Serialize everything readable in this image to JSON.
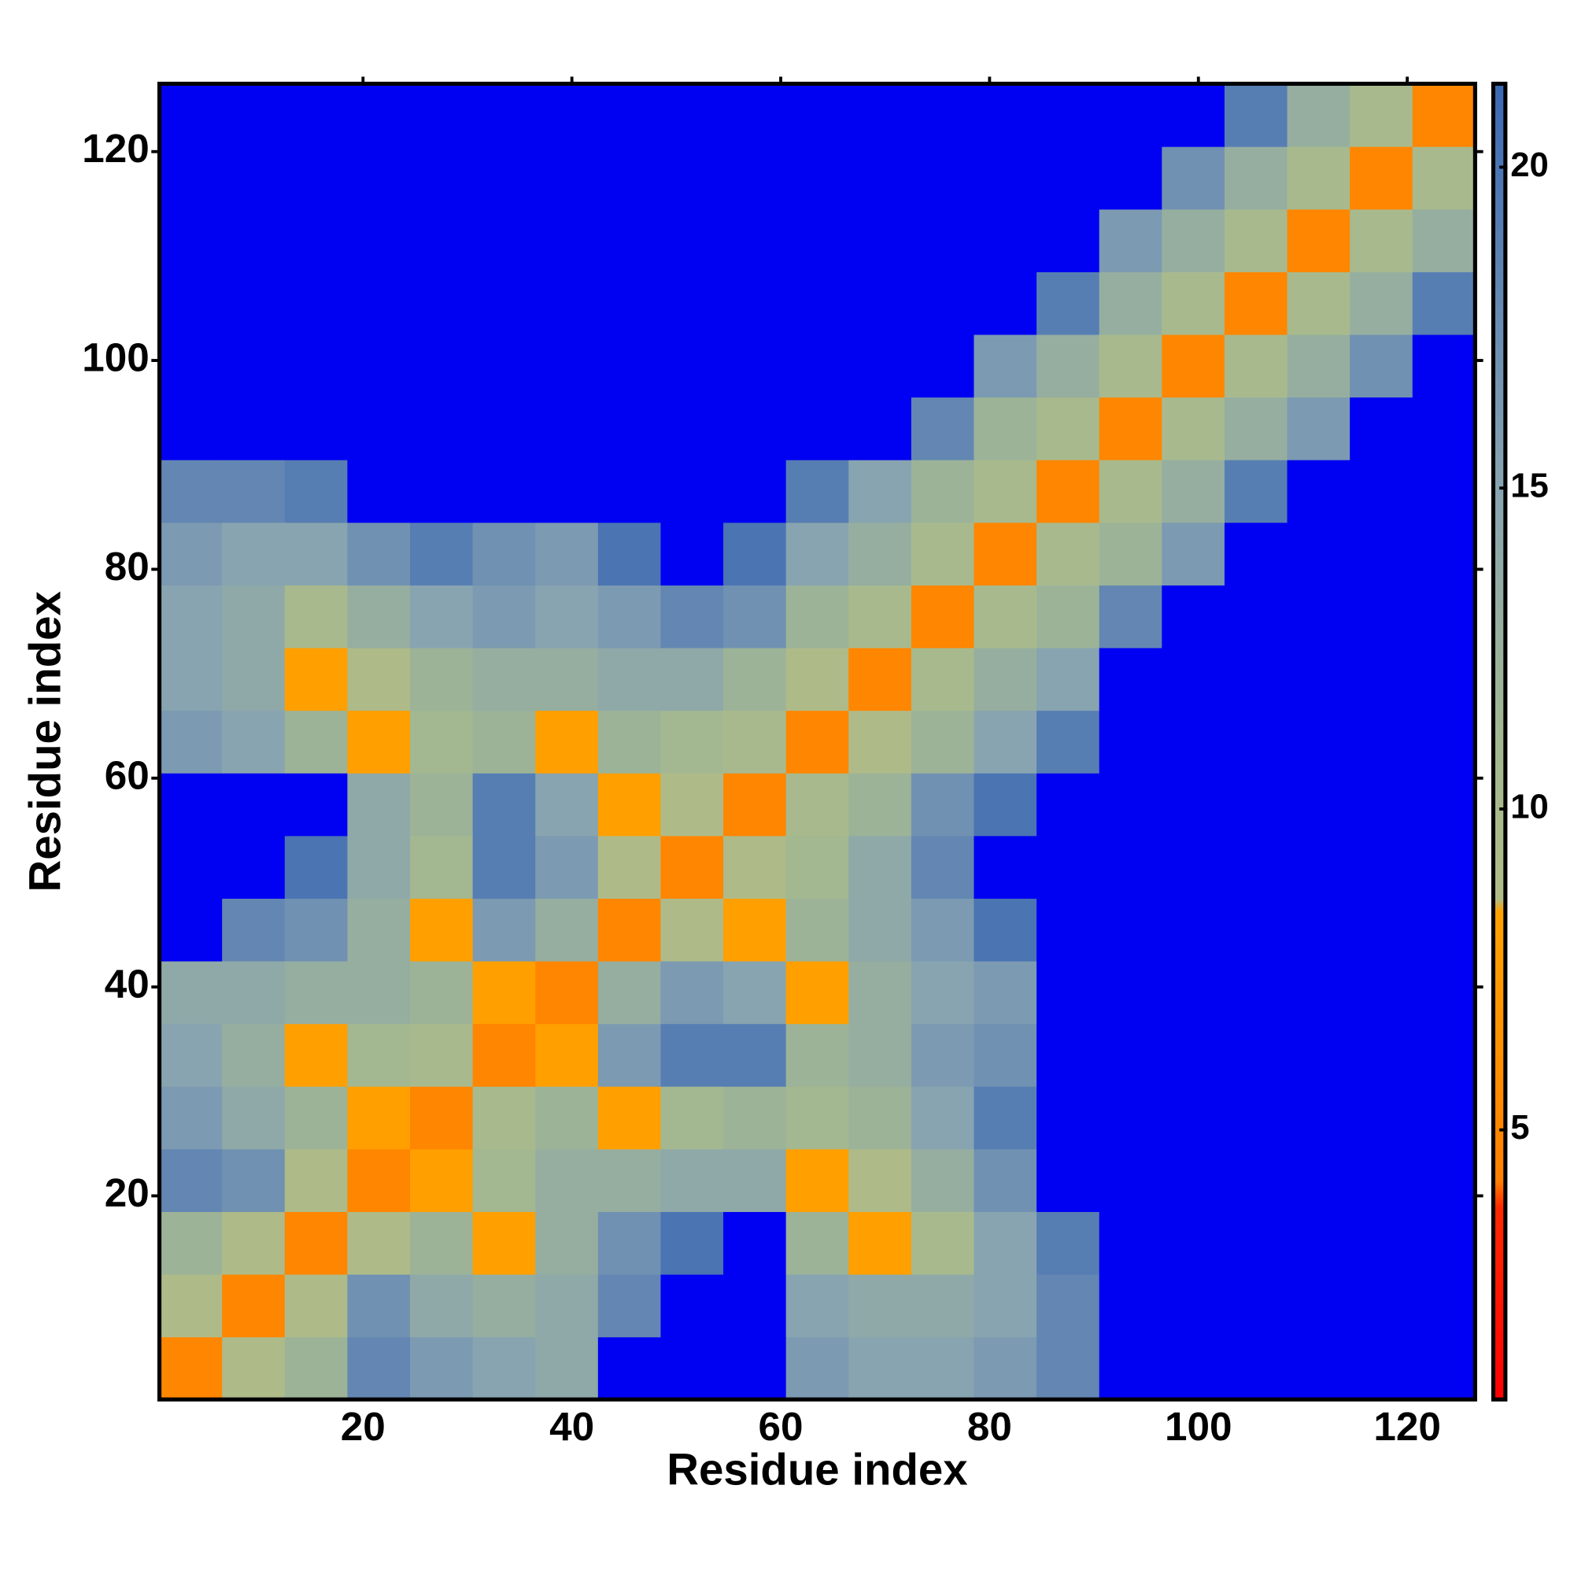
{
  "chart_data": {
    "type": "heatmap",
    "xlabel": "Residue index",
    "ylabel": "Residue index",
    "x_edges": [
      0.5,
      6.5,
      12.5,
      18.5,
      24.5,
      30.5,
      36.5,
      42.5,
      48.5,
      54.5,
      60.5,
      66.5,
      72.5,
      78.5,
      84.5,
      90.5,
      96.5,
      102.5,
      108.5,
      114.5,
      120.5,
      126.5
    ],
    "y_edges": [
      0.5,
      6.5,
      12.5,
      18.5,
      24.5,
      30.5,
      36.5,
      42.5,
      48.5,
      54.5,
      60.5,
      66.5,
      72.5,
      78.5,
      84.5,
      90.5,
      96.5,
      102.5,
      108.5,
      114.5,
      120.5,
      126.5
    ],
    "xlim": [
      0.5,
      126.5
    ],
    "ylim": [
      0.5,
      126.5
    ],
    "xticks": [
      20,
      40,
      60,
      80,
      100,
      120
    ],
    "yticks": [
      20,
      40,
      60,
      80,
      100,
      120
    ],
    "zlim": [
      0.8,
      21.3
    ],
    "zticks": [
      5,
      10,
      15,
      20
    ],
    "colorscale": [
      [
        0.8,
        "#ff0000"
      ],
      [
        3.8,
        "#ff2a00"
      ],
      [
        4.2,
        "#ff7f00"
      ],
      [
        8.4,
        "#ffa200"
      ],
      [
        8.6,
        "#b0bc88"
      ],
      [
        11,
        "#a3b890"
      ],
      [
        15,
        "#88a4b0"
      ],
      [
        21.3,
        "#3b68b4"
      ]
    ],
    "over_color": "#0000f2",
    "z": [
      [
        5,
        9,
        12,
        18,
        16,
        15,
        14,
        22,
        22,
        22,
        16,
        15,
        15,
        16,
        18,
        22,
        22,
        22,
        22,
        22,
        22
      ],
      [
        9,
        5,
        9,
        17,
        14,
        13,
        14,
        18,
        22,
        22,
        15,
        14,
        14,
        15,
        18,
        22,
        22,
        22,
        22,
        22,
        22
      ],
      [
        12,
        9,
        5,
        9,
        12,
        8,
        13,
        17,
        20,
        22,
        12,
        8,
        10,
        15,
        19,
        22,
        22,
        22,
        22,
        22,
        22
      ],
      [
        18,
        17,
        9,
        5,
        8,
        11,
        13,
        13,
        14,
        14,
        8,
        9,
        13,
        17,
        22,
        22,
        22,
        22,
        22,
        22,
        22
      ],
      [
        16,
        14,
        12,
        8,
        5,
        10,
        12,
        8,
        11,
        12,
        11,
        12,
        15,
        19,
        22,
        22,
        22,
        22,
        22,
        22,
        22
      ],
      [
        15,
        13,
        8,
        11,
        10,
        5,
        8,
        16,
        19,
        19,
        12,
        13,
        16,
        17,
        22,
        22,
        22,
        22,
        22,
        22,
        22
      ],
      [
        14,
        14,
        13,
        13,
        12,
        8,
        5,
        13,
        16,
        15,
        8,
        13,
        15,
        16,
        22,
        22,
        22,
        22,
        22,
        22,
        22
      ],
      [
        22,
        18,
        17,
        13,
        8,
        16,
        13,
        5,
        9,
        8,
        12,
        14,
        16,
        20,
        22,
        22,
        22,
        22,
        22,
        22,
        22
      ],
      [
        22,
        22,
        20,
        14,
        11,
        19,
        16,
        9,
        5,
        9,
        11,
        14,
        18,
        22,
        22,
        22,
        22,
        22,
        22,
        22,
        22
      ],
      [
        22,
        22,
        22,
        14,
        12,
        19,
        15,
        8,
        9,
        5,
        10,
        12,
        17,
        20,
        22,
        22,
        22,
        22,
        22,
        22,
        22
      ],
      [
        16,
        15,
        12,
        8,
        11,
        12,
        8,
        12,
        11,
        10,
        5,
        9,
        12,
        15,
        19,
        22,
        22,
        22,
        22,
        22,
        22
      ],
      [
        15,
        14,
        8,
        9,
        12,
        13,
        13,
        14,
        14,
        12,
        9,
        5,
        10,
        13,
        15,
        22,
        22,
        22,
        22,
        22,
        22
      ],
      [
        15,
        14,
        10,
        13,
        15,
        16,
        15,
        16,
        18,
        17,
        12,
        10,
        5,
        10,
        12,
        18,
        22,
        22,
        22,
        22,
        22
      ],
      [
        16,
        15,
        15,
        17,
        19,
        17,
        16,
        20,
        22,
        20,
        15,
        13,
        10,
        5,
        10,
        12,
        16,
        22,
        22,
        22,
        22
      ],
      [
        18,
        18,
        19,
        22,
        22,
        22,
        22,
        22,
        22,
        22,
        19,
        15,
        12,
        10,
        5,
        10,
        13,
        19,
        22,
        22,
        22
      ],
      [
        22,
        22,
        22,
        22,
        22,
        22,
        22,
        22,
        22,
        22,
        22,
        22,
        18,
        12,
        10,
        5,
        10,
        13,
        16,
        22,
        22
      ],
      [
        22,
        22,
        22,
        22,
        22,
        22,
        22,
        22,
        22,
        22,
        22,
        22,
        22,
        16,
        13,
        10,
        5,
        10,
        13,
        17,
        22
      ],
      [
        22,
        22,
        22,
        22,
        22,
        22,
        22,
        22,
        22,
        22,
        22,
        22,
        22,
        22,
        19,
        13,
        10,
        5,
        10,
        13,
        19
      ],
      [
        22,
        22,
        22,
        22,
        22,
        22,
        22,
        22,
        22,
        22,
        22,
        22,
        22,
        22,
        22,
        16,
        13,
        10,
        5,
        10,
        13
      ],
      [
        22,
        22,
        22,
        22,
        22,
        22,
        22,
        22,
        22,
        22,
        22,
        22,
        22,
        22,
        22,
        22,
        17,
        13,
        10,
        5,
        10
      ],
      [
        22,
        22,
        22,
        22,
        22,
        22,
        22,
        22,
        22,
        22,
        22,
        22,
        22,
        22,
        22,
        22,
        22,
        19,
        13,
        10,
        5
      ]
    ]
  }
}
